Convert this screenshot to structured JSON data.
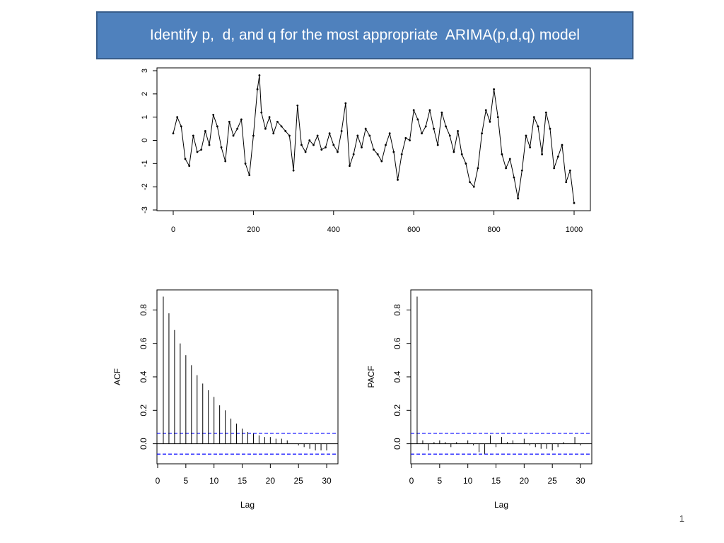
{
  "slide": {
    "title": "Identify p,  d, and q for the most appropriate  ARIMA(p,d,q) model",
    "number": "1",
    "accent_color": "#4f81bd"
  },
  "chart_data": [
    {
      "id": "series",
      "type": "line",
      "marker": "point",
      "x_ticks": [
        "0",
        "200",
        "400",
        "600",
        "800",
        "1000"
      ],
      "y_ticks": [
        "-3",
        "-2",
        "-1",
        "0",
        "1",
        "2",
        "3"
      ],
      "xlim": [
        0,
        1000
      ],
      "ylim": [
        -3,
        3
      ],
      "x": [
        0,
        10,
        20,
        30,
        40,
        50,
        60,
        70,
        80,
        90,
        100,
        110,
        120,
        130,
        140,
        150,
        160,
        170,
        180,
        190,
        200,
        210,
        215,
        220,
        230,
        240,
        250,
        260,
        270,
        280,
        290,
        300,
        310,
        320,
        330,
        340,
        350,
        360,
        370,
        380,
        390,
        400,
        410,
        420,
        430,
        440,
        450,
        460,
        470,
        480,
        490,
        500,
        510,
        520,
        530,
        540,
        550,
        560,
        570,
        580,
        590,
        600,
        610,
        620,
        630,
        640,
        650,
        660,
        670,
        680,
        690,
        700,
        710,
        720,
        730,
        740,
        750,
        760,
        770,
        780,
        790,
        800,
        810,
        820,
        830,
        840,
        850,
        860,
        870,
        880,
        890,
        900,
        910,
        920,
        930,
        940,
        950,
        960,
        970,
        980,
        990,
        1000
      ],
      "y": [
        0.3,
        1.0,
        0.6,
        -0.8,
        -1.1,
        0.2,
        -0.5,
        -0.4,
        0.4,
        -0.2,
        1.1,
        0.6,
        -0.3,
        -0.9,
        0.8,
        0.2,
        0.5,
        0.9,
        -1.0,
        -1.5,
        0.2,
        2.2,
        2.8,
        1.2,
        0.5,
        1.0,
        0.3,
        0.8,
        0.6,
        0.4,
        0.2,
        -1.3,
        1.5,
        -0.2,
        -0.5,
        0.0,
        -0.2,
        0.2,
        -0.4,
        -0.3,
        0.3,
        -0.2,
        -0.5,
        0.4,
        1.6,
        -1.1,
        -0.6,
        0.2,
        -0.3,
        0.5,
        0.2,
        -0.4,
        -0.6,
        -0.9,
        -0.2,
        0.3,
        -0.5,
        -1.7,
        -0.6,
        0.1,
        0.0,
        1.3,
        0.9,
        0.3,
        0.6,
        1.3,
        0.5,
        -0.2,
        1.2,
        0.6,
        0.2,
        -0.5,
        0.4,
        -0.6,
        -1.0,
        -1.8,
        -2.0,
        -1.2,
        0.3,
        1.3,
        0.8,
        2.2,
        1.0,
        -0.6,
        -1.2,
        -0.8,
        -1.6,
        -2.5,
        -1.3,
        0.2,
        -0.3,
        1.0,
        0.6,
        -0.6,
        1.2,
        0.5,
        -1.2,
        -0.7,
        -0.2,
        -1.8,
        -1.3,
        -2.7
      ]
    },
    {
      "id": "acf",
      "type": "bar",
      "ylabel": "ACF",
      "xlabel": "Lag",
      "x_ticks": [
        "0",
        "5",
        "10",
        "15",
        "20",
        "25",
        "30"
      ],
      "y_ticks": [
        "0.0",
        "0.2",
        "0.4",
        "0.6",
        "0.8"
      ],
      "xlim": [
        0,
        31
      ],
      "ylim": [
        -0.12,
        0.92
      ],
      "confidence_bound": 0.062,
      "bound_color": "#0000ff",
      "lags": [
        1,
        2,
        3,
        4,
        5,
        6,
        7,
        8,
        9,
        10,
        11,
        12,
        13,
        14,
        15,
        16,
        17,
        18,
        19,
        20,
        21,
        22,
        23,
        24,
        25,
        26,
        27,
        28,
        29,
        30
      ],
      "values": [
        0.88,
        0.78,
        0.68,
        0.6,
        0.53,
        0.47,
        0.41,
        0.36,
        0.32,
        0.28,
        0.23,
        0.2,
        0.15,
        0.12,
        0.09,
        0.07,
        0.06,
        0.05,
        0.04,
        0.04,
        0.03,
        0.03,
        0.02,
        0.0,
        -0.01,
        -0.02,
        -0.03,
        -0.04,
        -0.04,
        -0.04
      ]
    },
    {
      "id": "pacf",
      "type": "bar",
      "ylabel": "PACF",
      "xlabel": "Lag",
      "x_ticks": [
        "0",
        "5",
        "10",
        "15",
        "20",
        "25",
        "30"
      ],
      "y_ticks": [
        "0.0",
        "0.2",
        "0.4",
        "0.6",
        "0.8"
      ],
      "xlim": [
        0,
        31
      ],
      "ylim": [
        -0.12,
        0.92
      ],
      "confidence_bound": 0.062,
      "bound_color": "#0000ff",
      "lags": [
        1,
        2,
        3,
        4,
        5,
        6,
        7,
        8,
        9,
        10,
        11,
        12,
        13,
        14,
        15,
        16,
        17,
        18,
        19,
        20,
        21,
        22,
        23,
        24,
        25,
        26,
        27,
        28,
        29,
        30
      ],
      "values": [
        0.88,
        0.02,
        -0.04,
        0.01,
        0.02,
        0.01,
        -0.02,
        0.01,
        0.0,
        0.02,
        -0.01,
        -0.05,
        -0.06,
        0.05,
        -0.02,
        0.04,
        0.01,
        0.02,
        0.0,
        0.03,
        -0.01,
        -0.02,
        -0.03,
        -0.03,
        -0.04,
        -0.02,
        0.01,
        0.0,
        0.04,
        -0.01
      ]
    }
  ]
}
